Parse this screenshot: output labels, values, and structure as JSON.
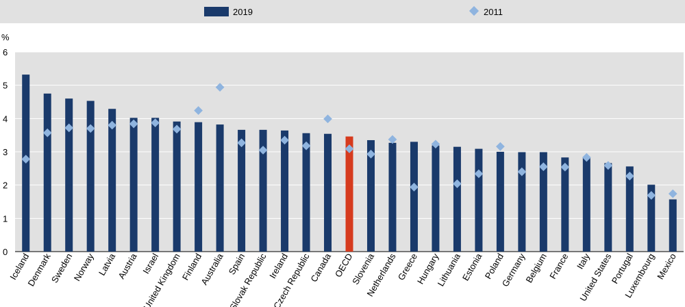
{
  "chart_data": {
    "type": "bar",
    "ylabel": "%",
    "ylim": [
      0,
      6
    ],
    "yticks": [
      0,
      1,
      2,
      3,
      4,
      5,
      6
    ],
    "grid": "horizontal",
    "legend_position": "top",
    "categories": [
      "Iceland",
      "Denmark",
      "Sweden",
      "Norway",
      "Latvia",
      "Austria",
      "Israel",
      "United Kingdom",
      "Finland",
      "Australia",
      "Spain",
      "Slovak Republic",
      "Ireland",
      "Czech Republic",
      "Canada",
      "OECD",
      "Slovenia",
      "Netherlands",
      "Greece",
      "Hungary",
      "Lithuania",
      "Estonia",
      "Poland",
      "Germany",
      "Belgium",
      "France",
      "Italy",
      "United States",
      "Portugal",
      "Luxembourg",
      "Mexico"
    ],
    "highlight_category": "OECD",
    "series": [
      {
        "name": "2019",
        "kind": "bar",
        "color": "#1a3a6b",
        "values": [
          5.32,
          4.75,
          4.6,
          4.53,
          4.29,
          4.02,
          4.02,
          3.91,
          3.89,
          3.82,
          3.66,
          3.66,
          3.64,
          3.56,
          3.54,
          3.46,
          3.35,
          3.27,
          3.3,
          3.19,
          3.15,
          3.09,
          3.0,
          2.99,
          2.99,
          2.83,
          2.82,
          2.66,
          2.56,
          2.01,
          1.57
        ]
      },
      {
        "name": "2011",
        "kind": "marker",
        "color": "#8fb4df",
        "values": [
          2.78,
          3.57,
          3.72,
          3.7,
          3.8,
          3.84,
          3.87,
          3.68,
          4.24,
          4.94,
          3.27,
          3.05,
          3.35,
          3.18,
          3.99,
          3.09,
          2.93,
          3.37,
          1.94,
          3.23,
          2.04,
          2.34,
          3.16,
          2.4,
          2.55,
          2.54,
          2.83,
          2.59,
          2.27,
          1.69,
          1.74
        ]
      }
    ],
    "highlight_color": "#d63b1e"
  }
}
